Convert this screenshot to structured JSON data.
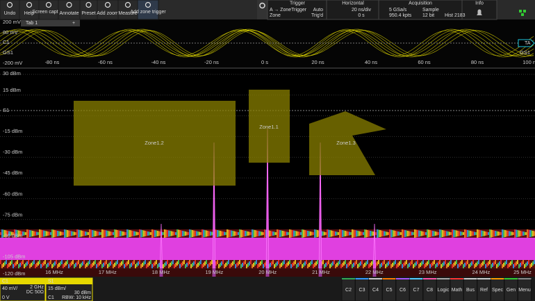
{
  "toolbar": {
    "buttons": [
      "Undo",
      "Help",
      "Screen capture",
      "Annotate",
      "Preset",
      "Add zoom",
      "Measure",
      "Add zone trigger"
    ]
  },
  "info_panel": {
    "headers": [
      "Trigger",
      "Horizontal",
      "Acquisition",
      "Info"
    ],
    "trigger": [
      "A → ZoneTrigger",
      "Auto",
      "Zone",
      "Trig'd"
    ],
    "horizontal": [
      "20 ns/div",
      "0 s"
    ],
    "acquisition": [
      "5 GSa/s",
      "Sample",
      "950.4 kpts",
      "12 bit",
      "Hist 2183"
    ]
  },
  "tabs": [
    "Tab 1",
    "+"
  ],
  "time_window": {
    "y_labels": [
      "200 mV",
      "80 mV",
      "C1",
      "GS1",
      "-200 mV"
    ],
    "right_labels": [
      "TA",
      "GS1"
    ],
    "x_labels": [
      "-80 ns",
      "-60 ns",
      "-40 ns",
      "-20 ns",
      "0 s",
      "20 ns",
      "40 ns",
      "60 ns",
      "80 ns",
      "100 ns"
    ]
  },
  "spectrum": {
    "y_labels": [
      "30 dBm",
      "15 dBm",
      "S1",
      "-15 dBm",
      "-30 dBm",
      "-45 dBm",
      "-60 dBm",
      "-75 dBm",
      "-90 dBm",
      "-105 dBm",
      "-120 dBm"
    ],
    "x_labels": [
      "16 MHz",
      "17 MHz",
      "18 MHz",
      "19 MHz",
      "20 MHz",
      "21 MHz",
      "22 MHz",
      "23 MHz",
      "24 MHz",
      "25 MHz"
    ],
    "zones": [
      "Zone1.1",
      "Zone1.2",
      "Zone1.3"
    ]
  },
  "bottom": {
    "c1": {
      "name": "C1",
      "scale": "40 mV/",
      "bw": "2 GHz",
      "coupling": "DC 50Ω",
      "offset": "0 V"
    },
    "s1": {
      "name": "S1",
      "scale": "15 dBm/",
      "ref": "30 dBm",
      "source": "C1",
      "rbw": "RBW: 10 kHz"
    },
    "buttons": [
      "C2",
      "C3",
      "C4",
      "C5",
      "C6",
      "C7",
      "C8",
      "Logic",
      "Math",
      "Bus",
      "Ref",
      "Spec",
      "Gen",
      "Menu"
    ]
  }
}
